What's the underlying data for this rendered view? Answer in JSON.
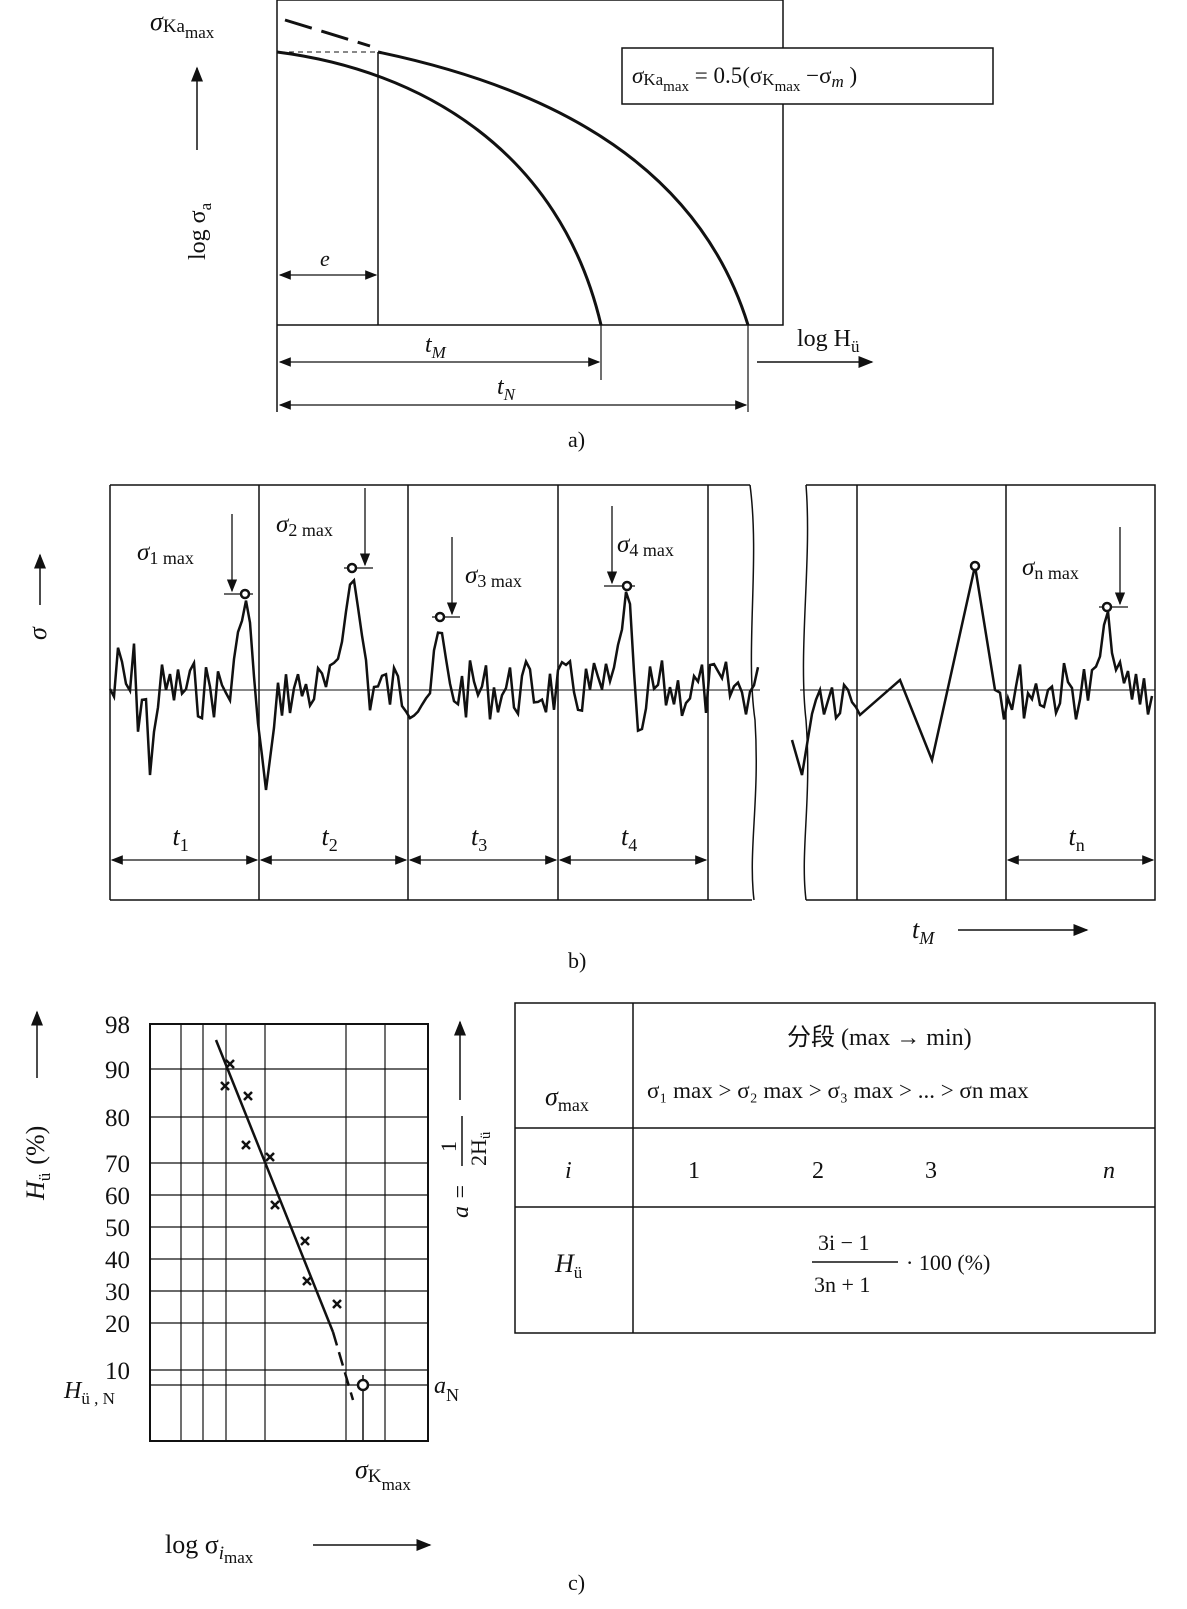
{
  "panel_a": {
    "y_top_label": "σ",
    "y_top_sub": "Ka",
    "y_top_subsub": "max",
    "y_axis_label": "log σ",
    "y_axis_sub": "a",
    "formula": {
      "lhs": "σ",
      "lhs_sub": "Ka",
      "lhs_subsub": "max",
      "eq": " = 0.5(σ",
      "k_sub": "K",
      "k_subsub": "max",
      "minus": " −σ",
      "m_sub": "m",
      "close": " )"
    },
    "x_axis_label": "log H",
    "x_axis_sub": "ü",
    "dim_e": "e",
    "dim_tM": "t",
    "dim_tM_sub": "M",
    "dim_tN": "t",
    "dim_tN_sub": "N",
    "caption": "a)"
  },
  "panel_b": {
    "y_axis_label": "σ",
    "peaks": [
      {
        "label": "σ",
        "sub": "1 max"
      },
      {
        "label": "σ",
        "sub": "2 max"
      },
      {
        "label": "σ",
        "sub": "3 max"
      },
      {
        "label": "σ",
        "sub": "4 max"
      },
      {
        "label": "σ",
        "sub": "n max"
      }
    ],
    "intervals": [
      {
        "t": "t",
        "sub": "1"
      },
      {
        "t": "t",
        "sub": "2"
      },
      {
        "t": "t",
        "sub": "3"
      },
      {
        "t": "t",
        "sub": "4"
      },
      {
        "t": "t",
        "sub": "n"
      }
    ],
    "x_axis_label": "t",
    "x_axis_sub": "M",
    "caption": "b)"
  },
  "panel_c": {
    "y_axis_label": "H",
    "y_axis_sub": "ü",
    "y_axis_unit": "(%)",
    "y_ticks": [
      "98",
      "90",
      "80",
      "70",
      "60",
      "50",
      "40",
      "30",
      "20",
      "10"
    ],
    "hun_label": "H",
    "hun_sub": "ü , N",
    "right_label": "a =",
    "right_num": "1",
    "right_den": "2H",
    "right_den_sub": "ü",
    "an_label": "a",
    "an_sub": "N",
    "kmax_label": "σ",
    "kmax_sub": "K",
    "kmax_subsub": "max",
    "x_axis_label": "log σ",
    "x_axis_sub": "i",
    "x_axis_subsub": "max",
    "caption": "c)"
  },
  "table": {
    "header_title": "分段 (max → min)",
    "row1_label": "σ",
    "row1_label_sub": "max",
    "row1_value": "σ₁ max > σ₂ max > σ₃ max > ... > σn max",
    "row2_label": "i",
    "row2_values": [
      "1",
      "2",
      "3",
      "n"
    ],
    "row3_label": "H",
    "row3_label_sub": "ü",
    "formula_num": "3i − 1",
    "formula_den": "3n + 1",
    "formula_tail": "· 100 (%)"
  }
}
